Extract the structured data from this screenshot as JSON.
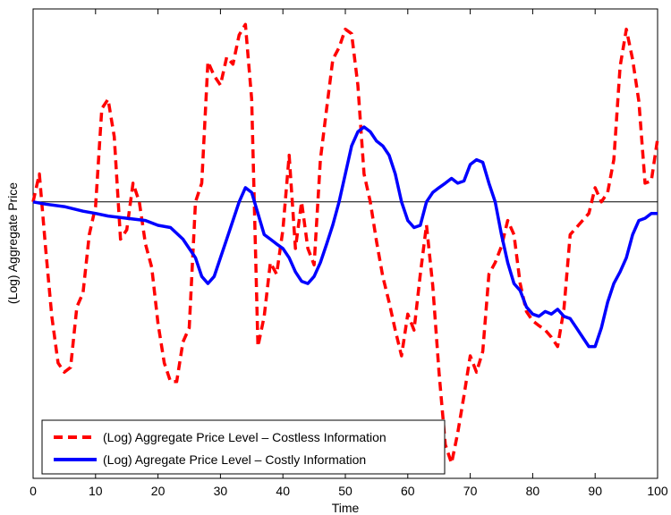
{
  "chart_data": {
    "type": "line",
    "title": "",
    "xlabel": "Time",
    "ylabel": "(Log) Aggregate Price",
    "xlim": [
      0,
      100
    ],
    "xticks": [
      "0",
      "10",
      "20",
      "30",
      "40",
      "50",
      "60",
      "70",
      "80",
      "90",
      "100"
    ],
    "yticks_visible": false,
    "grid": false,
    "legend_position": "bottom-left",
    "reference_line": {
      "y": 0,
      "color": "#000000"
    },
    "series": [
      {
        "name": "(Log) Aggregate Price Level – Costless Information",
        "color": "#ff0000",
        "style": "dashed",
        "points": [
          [
            0,
            0.0
          ],
          [
            1,
            0.087
          ],
          [
            2,
            -0.145
          ],
          [
            3,
            -0.356
          ],
          [
            4,
            -0.501
          ],
          [
            5,
            -0.53
          ],
          [
            6,
            -0.515
          ],
          [
            7,
            -0.327
          ],
          [
            8,
            -0.283
          ],
          [
            9,
            -0.102
          ],
          [
            10,
            -0.015
          ],
          [
            11,
            0.29
          ],
          [
            12,
            0.319
          ],
          [
            13,
            0.203
          ],
          [
            14,
            -0.116
          ],
          [
            15,
            -0.087
          ],
          [
            16,
            0.058
          ],
          [
            17,
            0.0
          ],
          [
            18,
            -0.131
          ],
          [
            19,
            -0.204
          ],
          [
            20,
            -0.378
          ],
          [
            21,
            -0.501
          ],
          [
            22,
            -0.559
          ],
          [
            23,
            -0.559
          ],
          [
            24,
            -0.436
          ],
          [
            25,
            -0.392
          ],
          [
            26,
            0.0
          ],
          [
            27,
            0.058
          ],
          [
            28,
            0.436
          ],
          [
            29,
            0.392
          ],
          [
            30,
            0.363
          ],
          [
            31,
            0.45
          ],
          [
            32,
            0.428
          ],
          [
            33,
            0.519
          ],
          [
            34,
            0.552
          ],
          [
            35,
            0.319
          ],
          [
            36,
            -0.45
          ],
          [
            37,
            -0.356
          ],
          [
            38,
            -0.189
          ],
          [
            39,
            -0.225
          ],
          [
            40,
            -0.087
          ],
          [
            41,
            0.145
          ],
          [
            42,
            -0.145
          ],
          [
            43,
            0.0
          ],
          [
            44,
            -0.145
          ],
          [
            45,
            -0.196
          ],
          [
            46,
            0.131
          ],
          [
            47,
            0.29
          ],
          [
            48,
            0.443
          ],
          [
            49,
            0.48
          ],
          [
            50,
            0.537
          ],
          [
            51,
            0.523
          ],
          [
            52,
            0.363
          ],
          [
            53,
            0.087
          ],
          [
            54,
            0.0
          ],
          [
            55,
            -0.124
          ],
          [
            56,
            -0.233
          ],
          [
            57,
            -0.312
          ],
          [
            58,
            -0.399
          ],
          [
            59,
            -0.479
          ],
          [
            60,
            -0.349
          ],
          [
            61,
            -0.399
          ],
          [
            62,
            -0.225
          ],
          [
            63,
            -0.072
          ],
          [
            64,
            -0.261
          ],
          [
            65,
            -0.53
          ],
          [
            66,
            -0.755
          ],
          [
            67,
            -0.813
          ],
          [
            68,
            -0.719
          ],
          [
            69,
            -0.603
          ],
          [
            70,
            -0.479
          ],
          [
            71,
            -0.53
          ],
          [
            72,
            -0.465
          ],
          [
            73,
            -0.225
          ],
          [
            74,
            -0.189
          ],
          [
            75,
            -0.138
          ],
          [
            76,
            -0.058
          ],
          [
            77,
            -0.102
          ],
          [
            78,
            -0.254
          ],
          [
            79,
            -0.341
          ],
          [
            80,
            -0.37
          ],
          [
            81,
            -0.385
          ],
          [
            82,
            -0.399
          ],
          [
            83,
            -0.421
          ],
          [
            84,
            -0.45
          ],
          [
            85,
            -0.334
          ],
          [
            86,
            -0.102
          ],
          [
            87,
            -0.08
          ],
          [
            88,
            -0.058
          ],
          [
            89,
            -0.036
          ],
          [
            90,
            0.044
          ],
          [
            91,
            0.0
          ],
          [
            92,
            0.029
          ],
          [
            93,
            0.131
          ],
          [
            94,
            0.421
          ],
          [
            95,
            0.537
          ],
          [
            96,
            0.443
          ],
          [
            97,
            0.312
          ],
          [
            98,
            0.058
          ],
          [
            99,
            0.065
          ],
          [
            100,
            0.196
          ]
        ]
      },
      {
        "name": "(Log) Agregate Price Level – Costly Information",
        "color": "#0000ff",
        "style": "solid",
        "points": [
          [
            0,
            0.0
          ],
          [
            2,
            -0.007
          ],
          [
            5,
            -0.015
          ],
          [
            8,
            -0.029
          ],
          [
            10,
            -0.036
          ],
          [
            12,
            -0.044
          ],
          [
            15,
            -0.051
          ],
          [
            18,
            -0.058
          ],
          [
            20,
            -0.073
          ],
          [
            22,
            -0.08
          ],
          [
            24,
            -0.116
          ],
          [
            26,
            -0.174
          ],
          [
            27,
            -0.232
          ],
          [
            28,
            -0.254
          ],
          [
            29,
            -0.232
          ],
          [
            30,
            -0.174
          ],
          [
            31,
            -0.116
          ],
          [
            32,
            -0.058
          ],
          [
            33,
            0.0
          ],
          [
            34,
            0.044
          ],
          [
            35,
            0.029
          ],
          [
            36,
            -0.036
          ],
          [
            37,
            -0.102
          ],
          [
            38,
            -0.116
          ],
          [
            39,
            -0.131
          ],
          [
            40,
            -0.145
          ],
          [
            41,
            -0.174
          ],
          [
            42,
            -0.218
          ],
          [
            43,
            -0.247
          ],
          [
            44,
            -0.254
          ],
          [
            45,
            -0.232
          ],
          [
            46,
            -0.189
          ],
          [
            47,
            -0.131
          ],
          [
            48,
            -0.072
          ],
          [
            49,
            0.0
          ],
          [
            50,
            0.087
          ],
          [
            51,
            0.174
          ],
          [
            52,
            0.218
          ],
          [
            53,
            0.233
          ],
          [
            54,
            0.218
          ],
          [
            55,
            0.189
          ],
          [
            56,
            0.174
          ],
          [
            57,
            0.145
          ],
          [
            58,
            0.087
          ],
          [
            59,
            0.0
          ],
          [
            60,
            -0.058
          ],
          [
            61,
            -0.08
          ],
          [
            62,
            -0.073
          ],
          [
            63,
            0.0
          ],
          [
            64,
            0.029
          ],
          [
            65,
            0.044
          ],
          [
            66,
            0.058
          ],
          [
            67,
            0.073
          ],
          [
            68,
            0.058
          ],
          [
            69,
            0.065
          ],
          [
            70,
            0.116
          ],
          [
            71,
            0.131
          ],
          [
            72,
            0.123
          ],
          [
            73,
            0.058
          ],
          [
            74,
            0.0
          ],
          [
            75,
            -0.102
          ],
          [
            76,
            -0.189
          ],
          [
            77,
            -0.254
          ],
          [
            78,
            -0.276
          ],
          [
            79,
            -0.327
          ],
          [
            80,
            -0.349
          ],
          [
            81,
            -0.356
          ],
          [
            82,
            -0.341
          ],
          [
            83,
            -0.349
          ],
          [
            84,
            -0.334
          ],
          [
            85,
            -0.356
          ],
          [
            86,
            -0.363
          ],
          [
            87,
            -0.392
          ],
          [
            88,
            -0.421
          ],
          [
            89,
            -0.45
          ],
          [
            90,
            -0.45
          ],
          [
            91,
            -0.392
          ],
          [
            92,
            -0.312
          ],
          [
            93,
            -0.254
          ],
          [
            94,
            -0.218
          ],
          [
            95,
            -0.174
          ],
          [
            96,
            -0.102
          ],
          [
            97,
            -0.058
          ],
          [
            98,
            -0.051
          ],
          [
            99,
            -0.036
          ],
          [
            100,
            -0.036
          ]
        ]
      }
    ]
  }
}
